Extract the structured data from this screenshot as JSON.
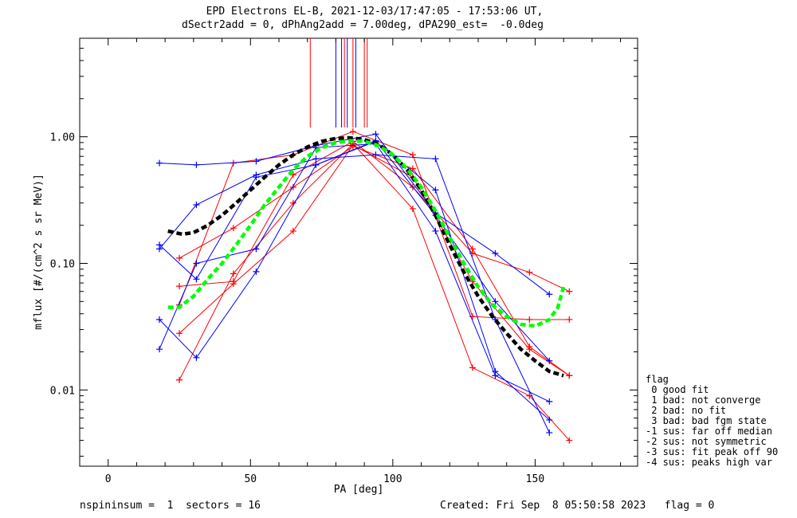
{
  "header": {
    "title_line1": "EPD Electrons EL-B, 2021-12-03/17:47:05 - 17:53:06 UT,",
    "title_line2": "dSectr2add = 0, dPhAng2add = 7.00deg, dPA290_est=  -0.0deg"
  },
  "footer": {
    "left": "nspininsum =  1  sectors = 16",
    "right": "Created: Fri Sep  8 05:50:58 2023   flag = 0"
  },
  "legend": {
    "title": "flag",
    "items": [
      " 0 good fit",
      " 1 bad: not converge",
      " 2 bad: no fit",
      " 3 bad: bad fgm state",
      "-1 sus: far off median",
      "-2 sus: not symmetric",
      "-3 sus: fit peak off 90",
      "-4 sus: peaks high var"
    ]
  },
  "colors": {
    "red": "#ff0000",
    "blue": "#0000ff",
    "black": "#000000",
    "green": "#00ff00",
    "axis": "#000000"
  },
  "chart_data": {
    "type": "line",
    "xlabel": "PA [deg]",
    "ylabel": "mflux [#/(cm^2 s sr MeV)]",
    "xlim": [
      -10,
      186
    ],
    "ylim": [
      0.0025,
      6.0
    ],
    "yscale": "log",
    "xticks": [
      0,
      50,
      100,
      150
    ],
    "xtick_labels": [
      "0",
      "50",
      "100",
      "150"
    ],
    "yticks": [
      0.01,
      0.1,
      1.0
    ],
    "ytick_labels": [
      "0.01",
      "0.10",
      "1.00"
    ],
    "series": [
      {
        "color": "red",
        "x": [
          25,
          44,
          65,
          86,
          107,
          128,
          148,
          162
        ],
        "y": [
          0.11,
          0.19,
          0.4,
          0.84,
          0.56,
          0.13,
          0.022,
          0.013
        ]
      },
      {
        "color": "red",
        "x": [
          25,
          44,
          65,
          86,
          107,
          128,
          148,
          162
        ],
        "y": [
          0.066,
          0.072,
          0.5,
          0.92,
          0.4,
          0.12,
          0.085,
          0.06
        ]
      },
      {
        "color": "red",
        "x": [
          25,
          44,
          65,
          86,
          107,
          128,
          148,
          162
        ],
        "y": [
          0.047,
          0.62,
          0.72,
          1.1,
          0.72,
          0.038,
          0.036,
          0.036
        ]
      },
      {
        "color": "red",
        "x": [
          25,
          44,
          65,
          86,
          107,
          128,
          148,
          162
        ],
        "y": [
          0.012,
          0.083,
          0.3,
          0.88,
          0.27,
          0.015,
          0.009,
          0.004
        ]
      },
      {
        "color": "red",
        "x": [
          25,
          44,
          65,
          86,
          107,
          128,
          148,
          162
        ],
        "y": [
          0.028,
          0.069,
          0.18,
          0.86,
          0.48,
          0.072,
          0.021,
          0.013
        ]
      },
      {
        "color": "blue",
        "x": [
          18,
          31,
          52,
          73,
          94,
          115,
          136,
          155
        ],
        "y": [
          0.62,
          0.6,
          0.64,
          0.85,
          1.05,
          0.25,
          0.12,
          0.057
        ]
      },
      {
        "color": "blue",
        "x": [
          18,
          31,
          52,
          73,
          94,
          115,
          136,
          155
        ],
        "y": [
          0.13,
          0.29,
          0.5,
          0.67,
          0.72,
          0.67,
          0.036,
          0.0046
        ]
      },
      {
        "color": "blue",
        "x": [
          18,
          31,
          52,
          73,
          94,
          115,
          136,
          155
        ],
        "y": [
          0.036,
          0.018,
          0.086,
          0.6,
          0.92,
          0.38,
          0.014,
          0.0058
        ]
      },
      {
        "color": "blue",
        "x": [
          18,
          31,
          52,
          73,
          94,
          115,
          136,
          155
        ],
        "y": [
          0.021,
          0.1,
          0.13,
          0.82,
          0.88,
          0.18,
          0.013,
          0.0081
        ]
      },
      {
        "color": "blue",
        "x": [
          18,
          31,
          52,
          73,
          94,
          115,
          136,
          155
        ],
        "y": [
          0.14,
          0.075,
          0.48,
          0.6,
          0.93,
          0.24,
          0.05,
          0.017
        ]
      }
    ],
    "fits": [
      {
        "color": "black",
        "x": [
          21,
          26,
          30,
          35,
          40,
          45,
          50,
          55,
          60,
          65,
          70,
          75,
          80,
          85,
          90,
          95,
          100,
          105,
          110,
          115,
          120,
          125,
          130,
          135,
          140,
          145,
          150,
          155,
          160
        ],
        "y": [
          0.18,
          0.17,
          0.175,
          0.2,
          0.24,
          0.3,
          0.38,
          0.48,
          0.6,
          0.72,
          0.83,
          0.92,
          0.97,
          0.98,
          0.95,
          0.87,
          0.72,
          0.55,
          0.38,
          0.24,
          0.14,
          0.085,
          0.055,
          0.038,
          0.028,
          0.021,
          0.017,
          0.014,
          0.013
        ]
      },
      {
        "color": "green",
        "x": [
          21,
          25,
          30,
          35,
          40,
          45,
          50,
          55,
          60,
          65,
          70,
          75,
          80,
          85,
          90,
          95,
          100,
          105,
          110,
          115,
          120,
          125,
          130,
          135,
          140,
          145,
          150,
          155,
          158,
          160
        ],
        "y": [
          0.045,
          0.045,
          0.055,
          0.075,
          0.1,
          0.14,
          0.2,
          0.29,
          0.4,
          0.55,
          0.7,
          0.82,
          0.9,
          0.93,
          0.92,
          0.85,
          0.72,
          0.56,
          0.4,
          0.26,
          0.16,
          0.1,
          0.065,
          0.047,
          0.038,
          0.033,
          0.032,
          0.036,
          0.045,
          0.065
        ]
      }
    ],
    "vlines": [
      {
        "color": "red",
        "x": 71
      },
      {
        "color": "blue",
        "x": 80
      },
      {
        "color": "blue",
        "x": 82
      },
      {
        "color": "red",
        "x": 83
      },
      {
        "color": "blue",
        "x": 84
      },
      {
        "color": "red",
        "x": 86
      },
      {
        "color": "blue",
        "x": 87
      },
      {
        "color": "red",
        "x": 90
      },
      {
        "color": "red",
        "x": 91
      }
    ]
  }
}
